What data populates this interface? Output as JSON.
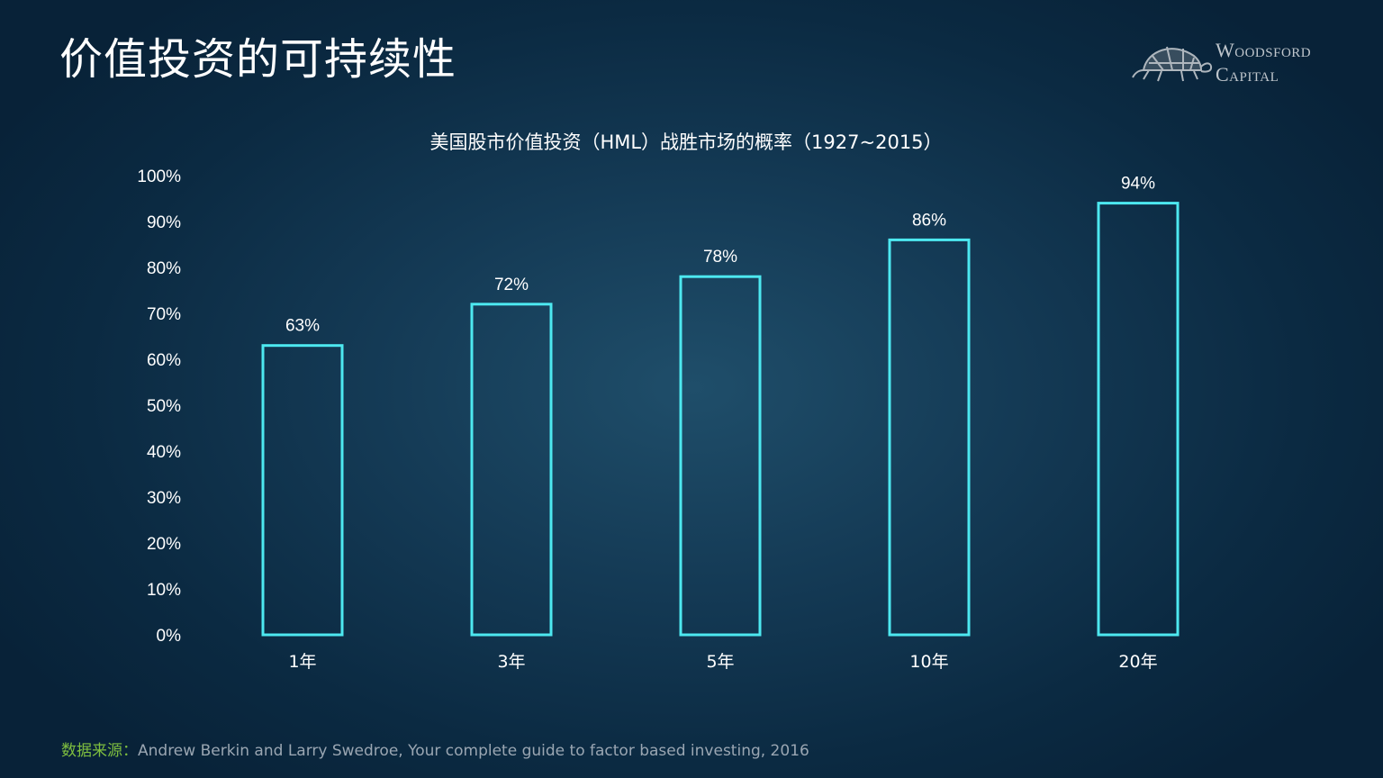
{
  "slide": {
    "title": "价值投资的可持续性"
  },
  "logo": {
    "line1": "Woodsford",
    "line2": "Capital",
    "icon": "tortoise-icon"
  },
  "chart_data": {
    "type": "bar",
    "title": "美国股市价值投资（HML）战胜市场的概率（1927~2015）",
    "categories": [
      "1年",
      "3年",
      "5年",
      "10年",
      "20年"
    ],
    "values": [
      63,
      72,
      78,
      86,
      94
    ],
    "data_labels": [
      "63%",
      "72%",
      "78%",
      "86%",
      "94%"
    ],
    "ylim": [
      0,
      100
    ],
    "yticks": [
      "0%",
      "10%",
      "20%",
      "30%",
      "40%",
      "50%",
      "60%",
      "70%",
      "80%",
      "90%",
      "100%"
    ],
    "xlabel": "",
    "ylabel": "",
    "grid": false,
    "bar_style": "outline",
    "bar_color": "#4de8f0"
  },
  "source": {
    "label": "数据来源：",
    "text": "Andrew Berkin and Larry Swedroe, Your complete guide to factor based investing, 2016"
  },
  "colors": {
    "background": "#0b2a42",
    "bar_outline": "#4de8f0",
    "source_label": "#7fbf3f",
    "source_text": "#9aa6b2"
  }
}
